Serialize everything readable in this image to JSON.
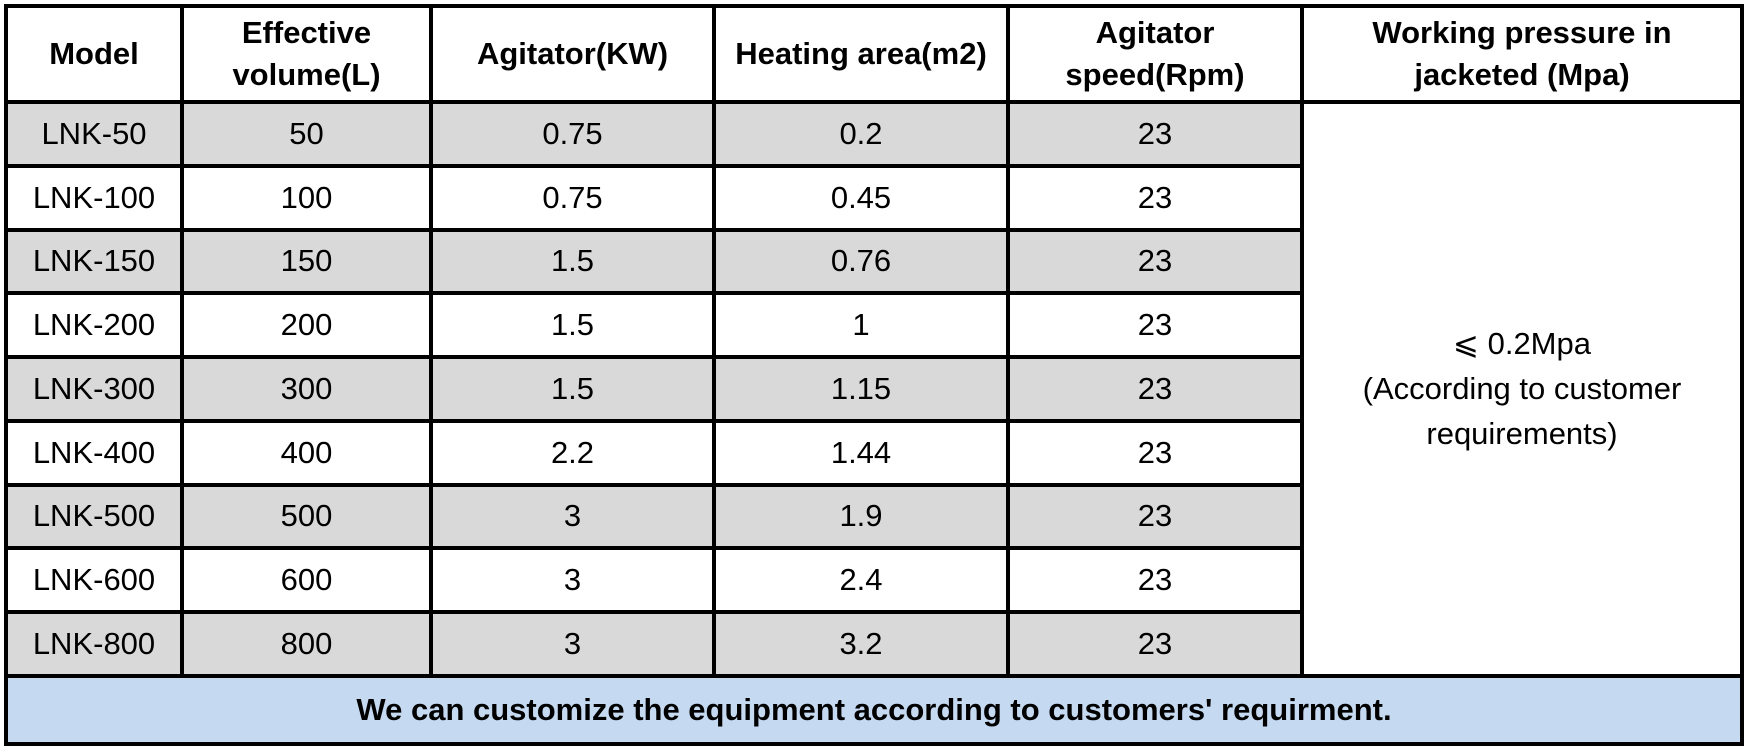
{
  "table": {
    "headers": [
      [
        "Model"
      ],
      [
        "Effective",
        "volume(L)"
      ],
      [
        "Agitator(KW)"
      ],
      [
        "Heating area(m2)"
      ],
      [
        "Agitator",
        "speed(Rpm)"
      ],
      [
        "Working pressure in",
        "jacketed (Mpa)"
      ]
    ],
    "rows": [
      {
        "model": "LNK-50",
        "volume": "50",
        "agitator_kw": "0.75",
        "heating_area": "0.2",
        "speed": "23"
      },
      {
        "model": "LNK-100",
        "volume": "100",
        "agitator_kw": "0.75",
        "heating_area": "0.45",
        "speed": "23"
      },
      {
        "model": "LNK-150",
        "volume": "150",
        "agitator_kw": "1.5",
        "heating_area": "0.76",
        "speed": "23"
      },
      {
        "model": "LNK-200",
        "volume": "200",
        "agitator_kw": "1.5",
        "heating_area": "1",
        "speed": "23"
      },
      {
        "model": "LNK-300",
        "volume": "300",
        "agitator_kw": "1.5",
        "heating_area": "1.15",
        "speed": "23"
      },
      {
        "model": "LNK-400",
        "volume": "400",
        "agitator_kw": "2.2",
        "heating_area": "1.44",
        "speed": "23"
      },
      {
        "model": "LNK-500",
        "volume": "500",
        "agitator_kw": "3",
        "heating_area": "1.9",
        "speed": "23"
      },
      {
        "model": "LNK-600",
        "volume": "600",
        "agitator_kw": "3",
        "heating_area": "2.4",
        "speed": "23"
      },
      {
        "model": "LNK-800",
        "volume": "800",
        "agitator_kw": "3",
        "heating_area": "3.2",
        "speed": "23"
      }
    ],
    "pressure_note": [
      "⩽ 0.2Mpa",
      "(According to customer",
      "requirements)"
    ],
    "footer": "We can customize the equipment according to customers' requirment.",
    "colors": {
      "shaded_row": "#d9d9d9",
      "plain_row": "#ffffff",
      "footer_bg": "#c5d9f1",
      "border": "#000000"
    }
  }
}
